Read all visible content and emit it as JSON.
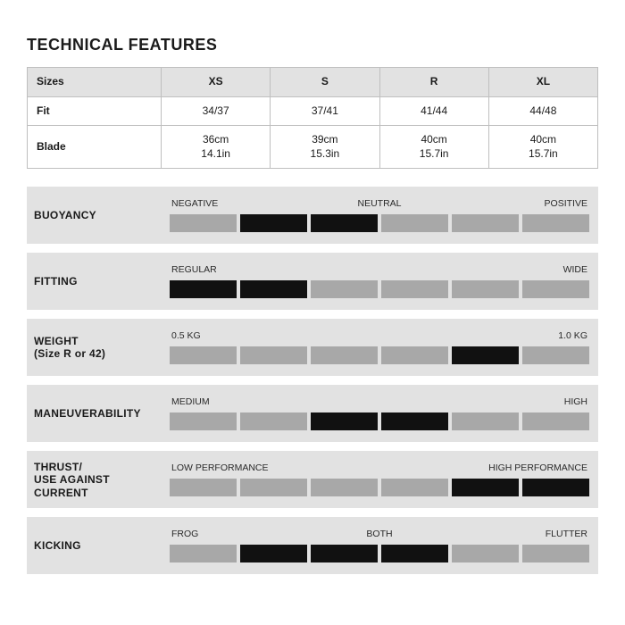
{
  "title": "TECHNICAL FEATURES",
  "spec_table": {
    "columns": [
      "Sizes",
      "XS",
      "S",
      "R",
      "XL"
    ],
    "rows": [
      {
        "label": "Fit",
        "cells": [
          "34/37",
          "37/41",
          "41/44",
          "44/48"
        ]
      },
      {
        "label": "Blade",
        "cells": [
          "36cm\n14.1in",
          "39cm\n15.3in",
          "40cm\n15.7in",
          "40cm\n15.7in"
        ]
      }
    ],
    "header_bg": "#e2e2e2",
    "border_color": "#bfbfbf"
  },
  "features": {
    "segment_count": 6,
    "off_color": "#a8a8a8",
    "on_color": "#111111",
    "row_bg": "#e2e2e2",
    "rows": [
      {
        "label": "BUOYANCY",
        "left": "NEGATIVE",
        "center": "NEUTRAL",
        "right": "POSITIVE",
        "active": [
          1,
          2
        ]
      },
      {
        "label": "FITTING",
        "left": "REGULAR",
        "center": "",
        "right": "WIDE",
        "active": [
          0,
          1
        ]
      },
      {
        "label": "WEIGHT\n(Size R or 42)",
        "left": "0.5 KG",
        "center": "",
        "right": "1.0 KG",
        "active": [
          4
        ]
      },
      {
        "label": "MANEUVERABILITY",
        "left": "MEDIUM",
        "center": "",
        "right": "HIGH",
        "active": [
          2,
          3
        ]
      },
      {
        "label": "THRUST/\nUSE AGAINST\nCURRENT",
        "left": "LOW PERFORMANCE",
        "center": "",
        "right": "HIGH PERFORMANCE",
        "active": [
          4,
          5
        ]
      },
      {
        "label": "KICKING",
        "left": "FROG",
        "center": "BOTH",
        "right": "FLUTTER",
        "active": [
          1,
          2,
          3
        ]
      }
    ]
  }
}
